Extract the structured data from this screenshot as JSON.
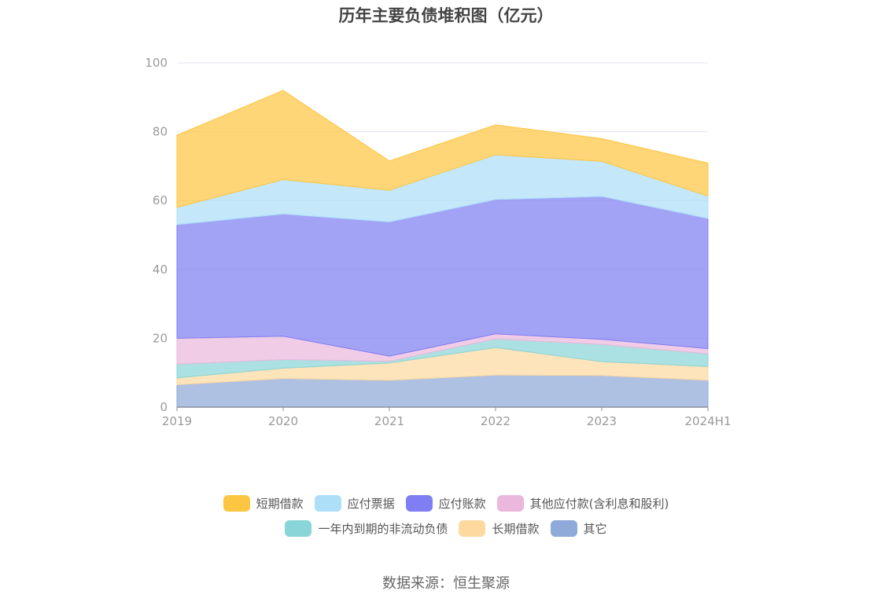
{
  "chart_data": {
    "type": "area",
    "stacked": true,
    "title": "历年主要负债堆积图（亿元）",
    "x": [
      "2019",
      "2020",
      "2021",
      "2022",
      "2023",
      "2024H1"
    ],
    "ylim": [
      0,
      100
    ],
    "yticks": [
      0,
      20,
      40,
      60,
      80,
      100
    ],
    "grid": true,
    "legend_position": "bottom",
    "series": [
      {
        "name": "其它",
        "color": "#8fa9d8",
        "values": [
          6.5,
          8.3,
          7.8,
          9.3,
          9.2,
          7.8
        ]
      },
      {
        "name": "长期借款",
        "color": "#fdd9a0",
        "values": [
          2.0,
          3.0,
          5.0,
          8.0,
          4.0,
          4.0
        ]
      },
      {
        "name": "一年内到期的非流动负债",
        "color": "#8ad5d7",
        "values": [
          4.0,
          2.5,
          0.5,
          2.5,
          5.0,
          3.7
        ]
      },
      {
        "name": "其他应付款(含利息和股利)",
        "color": "#eab8dd",
        "values": [
          7.5,
          6.8,
          1.5,
          1.5,
          1.5,
          1.5
        ]
      },
      {
        "name": "应付账款",
        "color": "#7f7ff3",
        "values": [
          33.0,
          35.5,
          39.0,
          39.0,
          41.5,
          37.8
        ]
      },
      {
        "name": "应付票据",
        "color": "#addff8",
        "values": [
          5.0,
          10.0,
          9.2,
          13.0,
          10.2,
          6.5
        ]
      },
      {
        "name": "短期借款",
        "color": "#fdc642",
        "values": [
          21.0,
          25.9,
          8.5,
          8.7,
          6.6,
          9.6
        ]
      }
    ],
    "legend_order": [
      "短期借款",
      "应付票据",
      "应付账款",
      "其他应付款(含利息和股利)",
      "一年内到期的非流动负债",
      "长期借款",
      "其它"
    ],
    "source": "数据来源：恒生聚源"
  }
}
